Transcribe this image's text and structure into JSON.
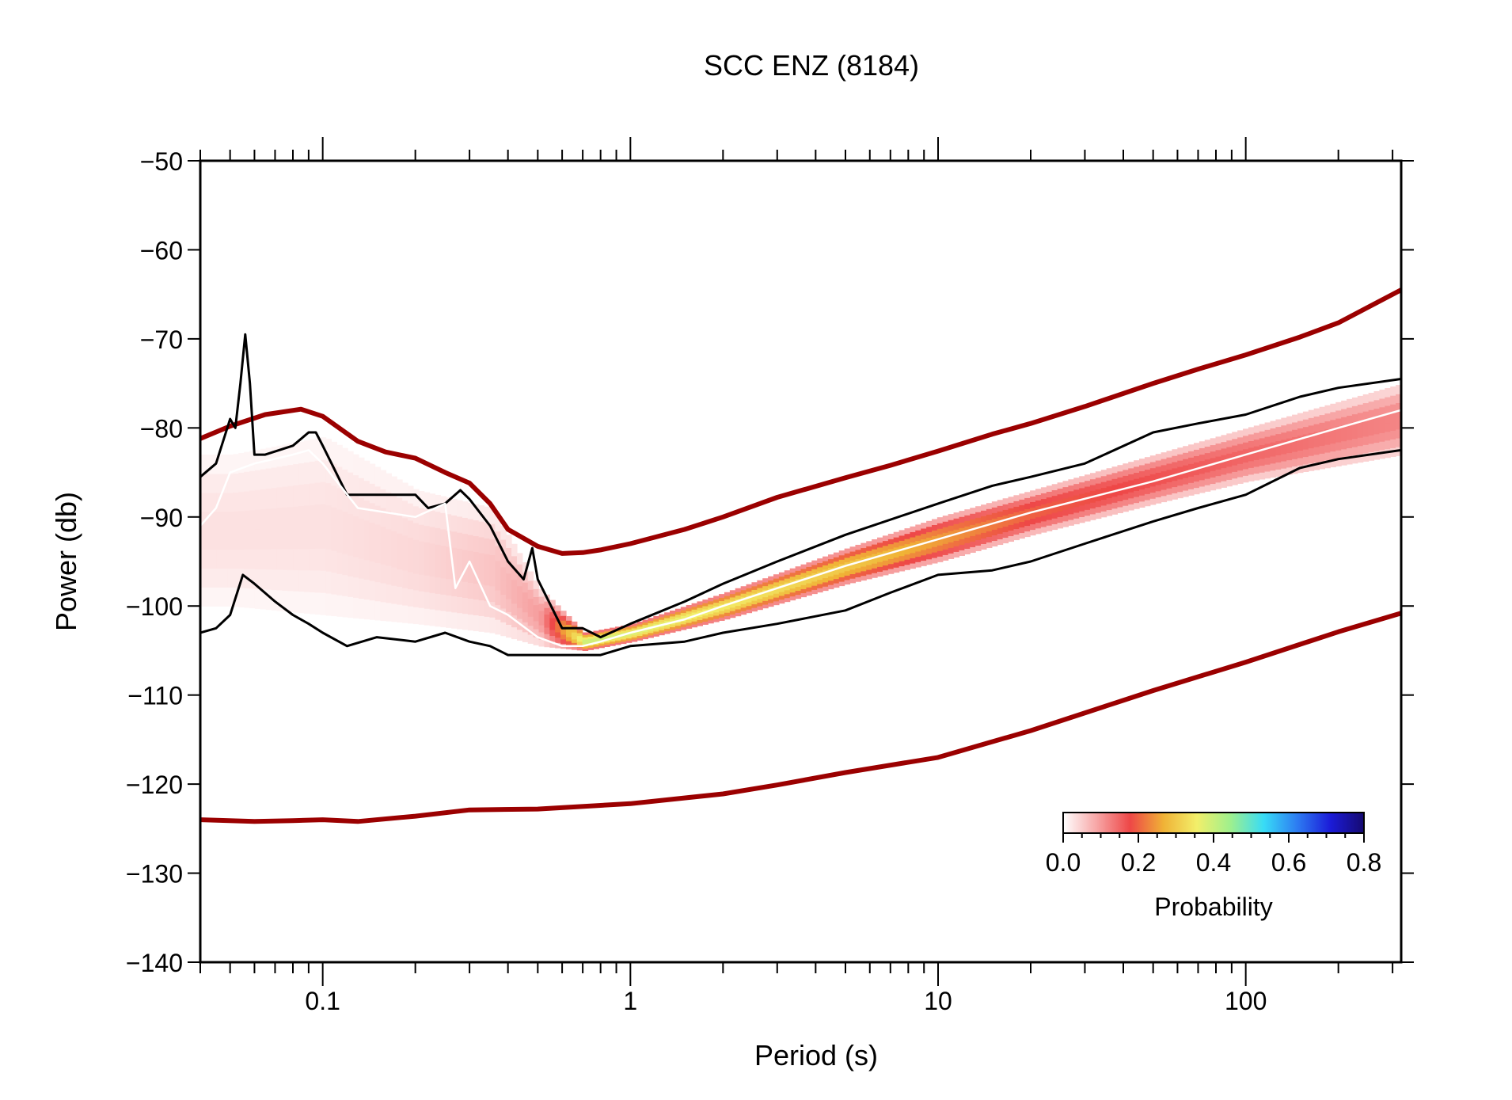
{
  "chart_data": {
    "type": "line",
    "title": "SCC ENZ (8184)",
    "xlabel": "Period (s)",
    "ylabel": "Power (db)",
    "x_scale": "log",
    "xlim": [
      0.04,
      320
    ],
    "ylim": [
      -140,
      -50
    ],
    "x_ticks": [
      {
        "value": 0.1,
        "label": "0.1"
      },
      {
        "value": 1,
        "label": "1"
      },
      {
        "value": 10,
        "label": "10"
      },
      {
        "value": 100,
        "label": "100"
      }
    ],
    "y_ticks": [
      {
        "value": -50,
        "label": "−50"
      },
      {
        "value": -60,
        "label": "−60"
      },
      {
        "value": -70,
        "label": "−70"
      },
      {
        "value": -80,
        "label": "−80"
      },
      {
        "value": -90,
        "label": "−90"
      },
      {
        "value": -100,
        "label": "−100"
      },
      {
        "value": -110,
        "label": "−110"
      },
      {
        "value": -120,
        "label": "−120"
      },
      {
        "value": -130,
        "label": "−130"
      },
      {
        "value": -140,
        "label": "−140"
      }
    ],
    "grid": false,
    "series": [
      {
        "role": "noise-model-high",
        "color": "#9b0000",
        "x": [
          0.04,
          0.05,
          0.065,
          0.085,
          0.1,
          0.13,
          0.16,
          0.2,
          0.25,
          0.3,
          0.35,
          0.4,
          0.5,
          0.6,
          0.7,
          0.8,
          1,
          1.5,
          2,
          3,
          5,
          7,
          10,
          15,
          20,
          30,
          50,
          70,
          100,
          150,
          200,
          320
        ],
        "y": [
          -81.2,
          -79.8,
          -78.5,
          -77.9,
          -78.7,
          -81.5,
          -82.7,
          -83.4,
          -85,
          -86.2,
          -88.5,
          -91.4,
          -93.3,
          -94.1,
          -94,
          -93.7,
          -93,
          -91.4,
          -90,
          -87.8,
          -85.6,
          -84.2,
          -82.6,
          -80.7,
          -79.5,
          -77.6,
          -75,
          -73.4,
          -71.8,
          -69.8,
          -68.2,
          -64.5
        ]
      },
      {
        "role": "noise-model-low",
        "color": "#9b0000",
        "x": [
          0.04,
          0.06,
          0.08,
          0.1,
          0.13,
          0.2,
          0.3,
          0.5,
          1,
          2,
          3,
          5,
          10,
          20,
          50,
          100,
          200,
          320
        ],
        "y": [
          -124,
          -124.2,
          -124.1,
          -124,
          -124.2,
          -123.6,
          -122.9,
          -122.8,
          -122.2,
          -121.1,
          -120.1,
          -118.7,
          -117,
          -114,
          -109.5,
          -106.3,
          -102.9,
          -100.8
        ]
      },
      {
        "role": "percentile-upper",
        "color": "#000000",
        "x": [
          0.04,
          0.045,
          0.05,
          0.052,
          0.054,
          0.056,
          0.058,
          0.06,
          0.065,
          0.08,
          0.09,
          0.095,
          0.1,
          0.12,
          0.14,
          0.2,
          0.22,
          0.25,
          0.28,
          0.3,
          0.35,
          0.4,
          0.45,
          0.48,
          0.5,
          0.6,
          0.7,
          0.8,
          1,
          1.5,
          2,
          3,
          5,
          10,
          15,
          20,
          30,
          50,
          70,
          100,
          150,
          200,
          320
        ],
        "y": [
          -85.5,
          -84,
          -79,
          -80,
          -75,
          -69.5,
          -75,
          -83,
          -83,
          -82,
          -80.5,
          -80.5,
          -82,
          -87.5,
          -87.5,
          -87.5,
          -89,
          -88.5,
          -87,
          -88,
          -91,
          -95,
          -97,
          -93.5,
          -97,
          -102.5,
          -102.5,
          -103.5,
          -102,
          -99.5,
          -97.5,
          -95,
          -92,
          -88.5,
          -86.5,
          -85.5,
          -84,
          -80.5,
          -79.5,
          -78.5,
          -76.5,
          -75.5,
          -74.5
        ]
      },
      {
        "role": "percentile-lower",
        "color": "#000000",
        "x": [
          0.04,
          0.045,
          0.05,
          0.055,
          0.06,
          0.07,
          0.08,
          0.09,
          0.1,
          0.12,
          0.15,
          0.2,
          0.25,
          0.3,
          0.35,
          0.4,
          0.5,
          0.6,
          0.7,
          0.8,
          1,
          1.5,
          2,
          3,
          5,
          7,
          10,
          15,
          20,
          30,
          50,
          70,
          100,
          150,
          200,
          320
        ],
        "y": [
          -103,
          -102.5,
          -101,
          -96.5,
          -97.5,
          -99.5,
          -101,
          -102,
          -103,
          -104.5,
          -103.5,
          -104,
          -103,
          -104,
          -104.5,
          -105.5,
          -105.5,
          -105.5,
          -105.5,
          -105.5,
          -104.5,
          -104,
          -103,
          -102,
          -100.5,
          -98.5,
          -96.5,
          -96,
          -95,
          -93,
          -90.5,
          -89,
          -87.5,
          -84.5,
          -83.5,
          -82.5
        ]
      },
      {
        "role": "mode",
        "color": "#ffffff",
        "x": [
          0.04,
          0.045,
          0.05,
          0.06,
          0.08,
          0.09,
          0.1,
          0.13,
          0.2,
          0.25,
          0.27,
          0.3,
          0.35,
          0.4,
          0.5,
          0.6,
          0.7,
          0.8,
          1,
          1.5,
          2,
          3,
          5,
          10,
          20,
          50,
          100,
          200,
          320
        ],
        "y": [
          -91,
          -89,
          -85,
          -84,
          -83,
          -82.5,
          -84,
          -89,
          -90,
          -88.5,
          -98,
          -95,
          -100,
          -101,
          -103.5,
          -104.5,
          -104.5,
          -104,
          -103,
          -101.5,
          -100,
          -98,
          -95.5,
          -92.5,
          -89.5,
          -86,
          -83,
          -80,
          -78
        ]
      }
    ],
    "pdf_density": {
      "colormap": "white-pink-red-yellow-cyan-blue-navy",
      "note": "probability density of PSDs",
      "cells": [
        {
          "period": 0.05,
          "power_low": -100,
          "power_high": -83,
          "prob": 0.03
        },
        {
          "period": 0.1,
          "power_low": -101,
          "power_high": -81,
          "prob": 0.03
        },
        {
          "period": 0.2,
          "power_low": -102,
          "power_high": -87,
          "prob": 0.04
        },
        {
          "period": 0.35,
          "power_low": -103,
          "power_high": -89,
          "prob": 0.06
        },
        {
          "period": 0.5,
          "power_low": -104.5,
          "power_high": -98,
          "prob": 0.1
        },
        {
          "period": 0.7,
          "power_low": -105,
          "power_high": -103,
          "prob": 0.4
        },
        {
          "period": 1,
          "power_low": -104,
          "power_high": -102,
          "prob": 0.38
        },
        {
          "period": 2,
          "power_low": -101.5,
          "power_high": -98.5,
          "prob": 0.35
        },
        {
          "period": 5,
          "power_low": -97.5,
          "power_high": -93.5,
          "prob": 0.3
        },
        {
          "period": 10,
          "power_low": -95,
          "power_high": -90,
          "prob": 0.25
        },
        {
          "period": 20,
          "power_low": -92,
          "power_high": -87,
          "prob": 0.2
        },
        {
          "period": 50,
          "power_low": -88.5,
          "power_high": -83,
          "prob": 0.17
        },
        {
          "period": 100,
          "power_low": -86,
          "power_high": -80,
          "prob": 0.15
        },
        {
          "period": 320,
          "power_low": -83,
          "power_high": -75,
          "prob": 0.12
        }
      ]
    },
    "colorbar": {
      "label": "Probability",
      "range": [
        0,
        0.8
      ],
      "ticks": [
        {
          "value": 0,
          "label": "0.0"
        },
        {
          "value": 0.2,
          "label": "0.2"
        },
        {
          "value": 0.4,
          "label": "0.4"
        },
        {
          "value": 0.6,
          "label": "0.6"
        },
        {
          "value": 0.8,
          "label": "0.8"
        }
      ],
      "placement": "bottom-right",
      "colors": [
        "#ffffff",
        "#f7a6a6",
        "#ee4747",
        "#f0b236",
        "#f2ef6a",
        "#9ff08d",
        "#38dcf6",
        "#2d7cf2",
        "#1b1bd8",
        "#160a70"
      ]
    }
  }
}
